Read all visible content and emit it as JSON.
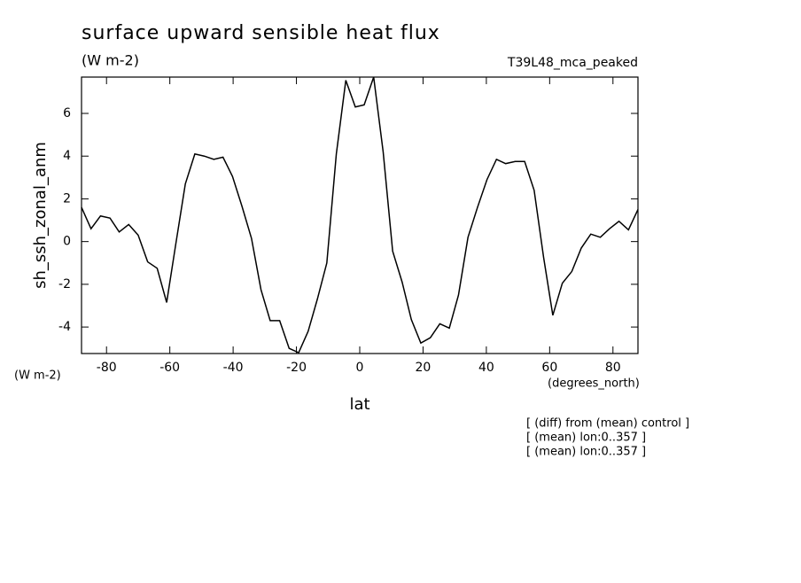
{
  "chart_data": {
    "type": "line",
    "title": "surface upward sensible heat flux",
    "subtitle": "(W m-2)",
    "dataset": "T39L48_mca_peaked",
    "y_label": "sh_ssh_zonal_anm",
    "y_units": "(W m-2)",
    "x_label": "lat",
    "x_units": "(degrees_north)",
    "notes": [
      "[ (diff) from (mean) control ]",
      "[ (mean) lon:0..357 ]",
      "[ (mean) lon:0..357 ]"
    ],
    "x": [
      -87.9,
      -84.9,
      -81.9,
      -78.9,
      -76.0,
      -73.0,
      -70.0,
      -67.0,
      -64.0,
      -61.0,
      -58.1,
      -55.1,
      -52.1,
      -49.1,
      -46.1,
      -43.2,
      -40.2,
      -37.2,
      -34.2,
      -31.2,
      -28.3,
      -25.3,
      -22.3,
      -19.3,
      -16.3,
      -13.4,
      -10.4,
      -7.4,
      -4.4,
      -1.4,
      1.4,
      4.4,
      7.4,
      10.4,
      13.4,
      16.3,
      19.3,
      22.3,
      25.3,
      28.3,
      31.2,
      34.2,
      37.2,
      40.2,
      43.2,
      46.1,
      49.1,
      52.1,
      55.1,
      58.1,
      61.0,
      64.0,
      67.0,
      70.0,
      73.0,
      76.0,
      78.9,
      81.9,
      84.9,
      87.9
    ],
    "series": [
      {
        "name": "sh_ssh_zonal_anm",
        "color": "#000000",
        "values": [
          1.6,
          0.6,
          1.2,
          1.1,
          0.45,
          0.8,
          0.3,
          -0.95,
          -1.25,
          -2.85,
          -0.1,
          2.7,
          4.1,
          4.0,
          3.85,
          3.95,
          3.05,
          1.65,
          0.15,
          -2.25,
          -3.7,
          -3.7,
          -5.0,
          -5.2,
          -4.2,
          -2.7,
          -1.0,
          4.1,
          7.55,
          6.3,
          6.4,
          7.7,
          4.2,
          -0.45,
          -1.9,
          -3.65,
          -4.75,
          -4.5,
          -3.85,
          -4.05,
          -2.5,
          0.2,
          1.6,
          2.9,
          3.85,
          3.65,
          3.75,
          3.75,
          2.4,
          -0.75,
          -3.45,
          -1.95,
          -1.4,
          -0.3,
          0.35,
          0.2,
          0.6,
          0.95,
          0.55,
          1.5
        ]
      }
    ],
    "xlim": [
      -87.9,
      87.9
    ],
    "ylim": [
      -5.24,
      7.7
    ],
    "xticks": [
      -80,
      -60,
      -40,
      -20,
      0,
      20,
      40,
      60,
      80
    ],
    "yticks": [
      -4,
      -2,
      0,
      2,
      4,
      6
    ]
  }
}
